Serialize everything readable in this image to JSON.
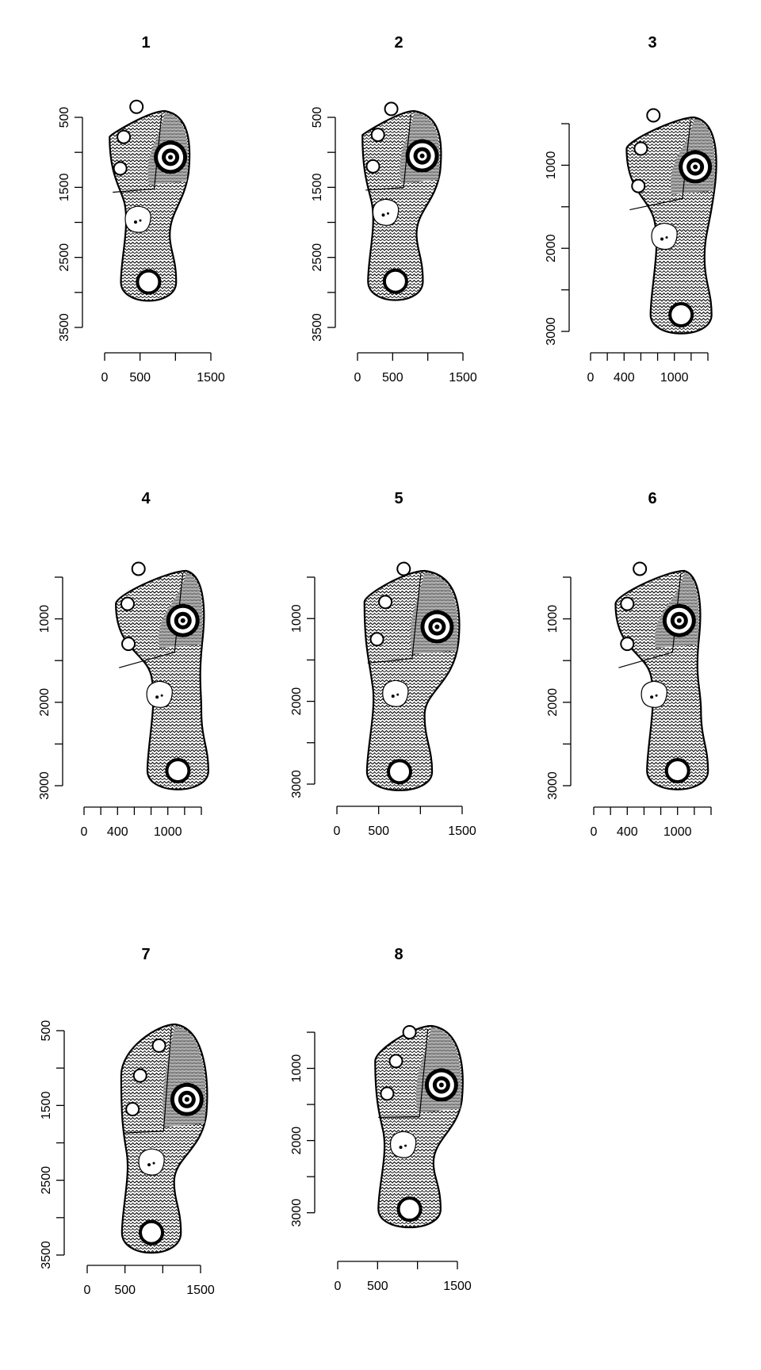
{
  "figure": {
    "layout": "3x3 grid of shoe sole print panels (8 used)",
    "background": "#ffffff",
    "ink": "#000000"
  },
  "chart_data": [
    {
      "type": "other",
      "title": "1",
      "x_ticks": [
        0,
        500,
        1000,
        1500
      ],
      "x_tick_labels": [
        "0",
        "500",
        "",
        "1500"
      ],
      "xlim": [
        0,
        1500
      ],
      "y_ticks": [
        500,
        1000,
        1500,
        2000,
        2500,
        3000,
        3500
      ],
      "y_tick_labels": [
        "500",
        "",
        "1500",
        "",
        "2500",
        "",
        "3500"
      ],
      "ylim": [
        3500,
        500
      ],
      "features": {
        "lugs": [
          [
            450,
            350
          ],
          [
            270,
            780
          ],
          [
            220,
            1230
          ]
        ],
        "pivot": [
          930,
          1070
        ],
        "toe_circle": [
          620,
          2850
        ],
        "heel_logo": [
          470,
          1950
        ]
      }
    },
    {
      "type": "other",
      "title": "2",
      "x_ticks": [
        0,
        500,
        1000,
        1500
      ],
      "x_tick_labels": [
        "0",
        "500",
        "",
        "1500"
      ],
      "xlim": [
        0,
        1500
      ],
      "y_ticks": [
        500,
        1000,
        1500,
        2000,
        2500,
        3000,
        3500
      ],
      "y_tick_labels": [
        "500",
        "",
        "1500",
        "",
        "2500",
        "",
        "3500"
      ],
      "ylim": [
        3500,
        500
      ],
      "features": {
        "lugs": [
          [
            480,
            380
          ],
          [
            290,
            750
          ],
          [
            220,
            1200
          ]
        ],
        "pivot": [
          920,
          1050
        ],
        "toe_circle": [
          540,
          2840
        ],
        "heel_logo": [
          400,
          1850
        ]
      }
    },
    {
      "type": "other",
      "title": "3",
      "x_ticks": [
        0,
        200,
        400,
        600,
        800,
        1000,
        1200,
        1400
      ],
      "x_tick_labels": [
        "0",
        "",
        "400",
        "",
        "",
        "1000",
        "",
        ""
      ],
      "xlim": [
        0,
        1400
      ],
      "y_ticks": [
        500,
        1000,
        1500,
        2000,
        2500,
        3000
      ],
      "y_tick_labels": [
        "",
        "1000",
        "",
        "2000",
        "",
        "3000"
      ],
      "ylim": [
        3000,
        500
      ],
      "features": {
        "lugs": [
          [
            750,
            400
          ],
          [
            600,
            800
          ],
          [
            570,
            1250
          ]
        ],
        "pivot": [
          1250,
          1020
        ],
        "toe_circle": [
          1080,
          2800
        ],
        "heel_logo": [
          880,
          1850
        ]
      }
    },
    {
      "type": "other",
      "title": "4",
      "x_ticks": [
        0,
        200,
        400,
        600,
        800,
        1000,
        1200,
        1400
      ],
      "x_tick_labels": [
        "0",
        "",
        "400",
        "",
        "",
        "1000",
        "",
        ""
      ],
      "xlim": [
        0,
        1400
      ],
      "y_ticks": [
        500,
        1000,
        1500,
        2000,
        2500,
        3000
      ],
      "y_tick_labels": [
        "",
        "1000",
        "",
        "2000",
        "",
        "3000"
      ],
      "ylim": [
        3000,
        500
      ],
      "features": {
        "lugs": [
          [
            650,
            400
          ],
          [
            520,
            820
          ],
          [
            530,
            1300
          ]
        ],
        "pivot": [
          1180,
          1020
        ],
        "toe_circle": [
          1120,
          2820
        ],
        "heel_logo": [
          900,
          1900
        ]
      }
    },
    {
      "type": "other",
      "title": "5",
      "x_ticks": [
        0,
        500,
        1000,
        1500
      ],
      "x_tick_labels": [
        "0",
        "500",
        "",
        "1500"
      ],
      "xlim": [
        0,
        1500
      ],
      "y_ticks": [
        500,
        1000,
        1500,
        2000,
        2500,
        3000
      ],
      "y_tick_labels": [
        "",
        "1000",
        "",
        "2000",
        "",
        "3000"
      ],
      "ylim": [
        3000,
        500
      ],
      "features": {
        "lugs": [
          [
            800,
            400
          ],
          [
            580,
            800
          ],
          [
            480,
            1250
          ]
        ],
        "pivot": [
          1200,
          1100
        ],
        "toe_circle": [
          750,
          2850
        ],
        "heel_logo": [
          700,
          1900
        ]
      }
    },
    {
      "type": "other",
      "title": "6",
      "x_ticks": [
        0,
        200,
        400,
        600,
        800,
        1000,
        1200,
        1400
      ],
      "x_tick_labels": [
        "0",
        "",
        "400",
        "",
        "",
        "1000",
        "",
        ""
      ],
      "xlim": [
        0,
        1400
      ],
      "y_ticks": [
        500,
        1000,
        1500,
        2000,
        2500,
        3000
      ],
      "y_tick_labels": [
        "",
        "1000",
        "",
        "2000",
        "",
        "3000"
      ],
      "ylim": [
        3000,
        500
      ],
      "features": {
        "lugs": [
          [
            550,
            400
          ],
          [
            400,
            820
          ],
          [
            400,
            1300
          ]
        ],
        "pivot": [
          1020,
          1020
        ],
        "toe_circle": [
          1000,
          2820
        ],
        "heel_logo": [
          720,
          1900
        ]
      }
    },
    {
      "type": "other",
      "title": "7",
      "x_ticks": [
        0,
        500,
        1000,
        1500
      ],
      "x_tick_labels": [
        "0",
        "500",
        "",
        "1500"
      ],
      "xlim": [
        0,
        1500
      ],
      "y_ticks": [
        500,
        1000,
        1500,
        2000,
        2500,
        3000,
        3500
      ],
      "y_tick_labels": [
        "500",
        "",
        "1500",
        "",
        "2500",
        "",
        "3500"
      ],
      "ylim": [
        3500,
        500
      ],
      "features": {
        "lugs": [
          [
            950,
            700
          ],
          [
            700,
            1100
          ],
          [
            600,
            1550
          ]
        ],
        "pivot": [
          1320,
          1420
        ],
        "toe_circle": [
          850,
          3200
        ],
        "heel_logo": [
          850,
          2250
        ]
      }
    },
    {
      "type": "other",
      "title": "8",
      "x_ticks": [
        0,
        500,
        1000,
        1500
      ],
      "x_tick_labels": [
        "0",
        "500",
        "",
        "1500"
      ],
      "xlim": [
        0,
        1500
      ],
      "y_ticks": [
        500,
        1000,
        1500,
        2000,
        2500,
        3000
      ],
      "y_tick_labels": [
        "",
        "1000",
        "",
        "2000",
        "",
        "3000"
      ],
      "ylim": [
        3300,
        500
      ],
      "features": {
        "lugs": [
          [
            900,
            500
          ],
          [
            730,
            900
          ],
          [
            620,
            1350
          ]
        ],
        "pivot": [
          1300,
          1230
        ],
        "toe_circle": [
          900,
          2950
        ],
        "heel_logo": [
          820,
          2050
        ]
      }
    }
  ]
}
